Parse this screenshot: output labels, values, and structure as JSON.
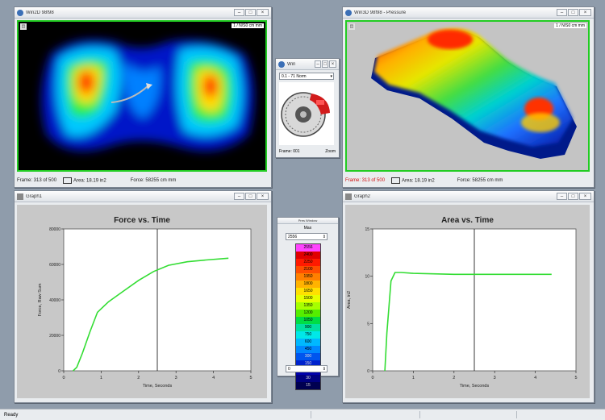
{
  "pressure_2d": {
    "title": "Win2D 98f98",
    "toolbar_btn": "◫",
    "unit_tag": "1 / N/S0 cm mm",
    "frame": "Frame: 313 of 500",
    "area": "Area: 18.19 in2",
    "force": "Force: 58255 cm mm"
  },
  "pressure_3d": {
    "title": "Win3D 98f98 - Pressure",
    "toolbar_btn": "◫",
    "unit_tag": "1 / N/S0 cm mm",
    "frame": "Frame: 313 of 500",
    "area": "Area: 18.19 in2",
    "force": "Force: 58255 cm mm"
  },
  "brake_window": {
    "title": "Win",
    "dropdown": "0.1 - 71 Norm",
    "footer_left": "Frame: 001",
    "footer_right": "Zoom"
  },
  "legend_window": {
    "title": "Pres Window",
    "subtitle": "Max",
    "max_value": "2556",
    "min_value": "0",
    "levels": [
      "2556",
      "2400",
      "2250",
      "2100",
      "1950",
      "1800",
      "1650",
      "1500",
      "1350",
      "1200",
      "1050",
      "900",
      "750",
      "600",
      "450",
      "300",
      "150",
      "70",
      "30",
      "15"
    ],
    "colors": [
      "#ff44ff",
      "#e00000",
      "#ff1a00",
      "#ff4d00",
      "#ff8000",
      "#ffb300",
      "#ffe000",
      "#e6ff00",
      "#a6ff00",
      "#55ee00",
      "#00dd44",
      "#00e0a0",
      "#00e8e8",
      "#00b8ff",
      "#0088ff",
      "#0055ee",
      "#0022cc",
      "#0000aa",
      "#000080",
      "#000050"
    ]
  },
  "graph1_window": {
    "title": "Graph1"
  },
  "graph2_window": {
    "title": "Graph2"
  },
  "app_status": {
    "text": "Ready"
  },
  "chart_data": [
    {
      "type": "line",
      "title": "Force vs. Time",
      "xlabel": "Time, Seconds",
      "ylabel": "Force, Raw Sum",
      "xlim": [
        0,
        5
      ],
      "ylim": [
        0,
        80000
      ],
      "xticks": [
        "0",
        "1",
        "2",
        "3",
        "4",
        "5"
      ],
      "yticks": [
        "0",
        "20000",
        "40000",
        "60000",
        "80000"
      ],
      "cursor_x": 2.5,
      "series": [
        {
          "color": "#33dd33",
          "x": [
            0.25,
            0.35,
            0.5,
            0.7,
            0.9,
            1.2,
            1.6,
            2.0,
            2.4,
            2.8,
            3.3,
            3.8,
            4.4
          ],
          "y": [
            0,
            2000,
            10000,
            22000,
            33000,
            39000,
            45000,
            51000,
            56000,
            59500,
            61500,
            62500,
            63500
          ]
        }
      ]
    },
    {
      "type": "line",
      "title": "Area vs. Time",
      "xlabel": "Time, Seconds",
      "ylabel": "Area, in2",
      "xlim": [
        0,
        5
      ],
      "ylim": [
        0,
        15
      ],
      "xticks": [
        "0",
        "1",
        "2",
        "3",
        "4",
        "5"
      ],
      "yticks": [
        "0",
        "5",
        "10",
        "15"
      ],
      "cursor_x": 2.5,
      "series": [
        {
          "color": "#33dd33",
          "x": [
            0.3,
            0.35,
            0.45,
            0.55,
            0.7,
            1.0,
            2.0,
            3.0,
            4.4
          ],
          "y": [
            0,
            4,
            9.5,
            10.4,
            10.4,
            10.3,
            10.2,
            10.2,
            10.2
          ]
        }
      ]
    }
  ]
}
